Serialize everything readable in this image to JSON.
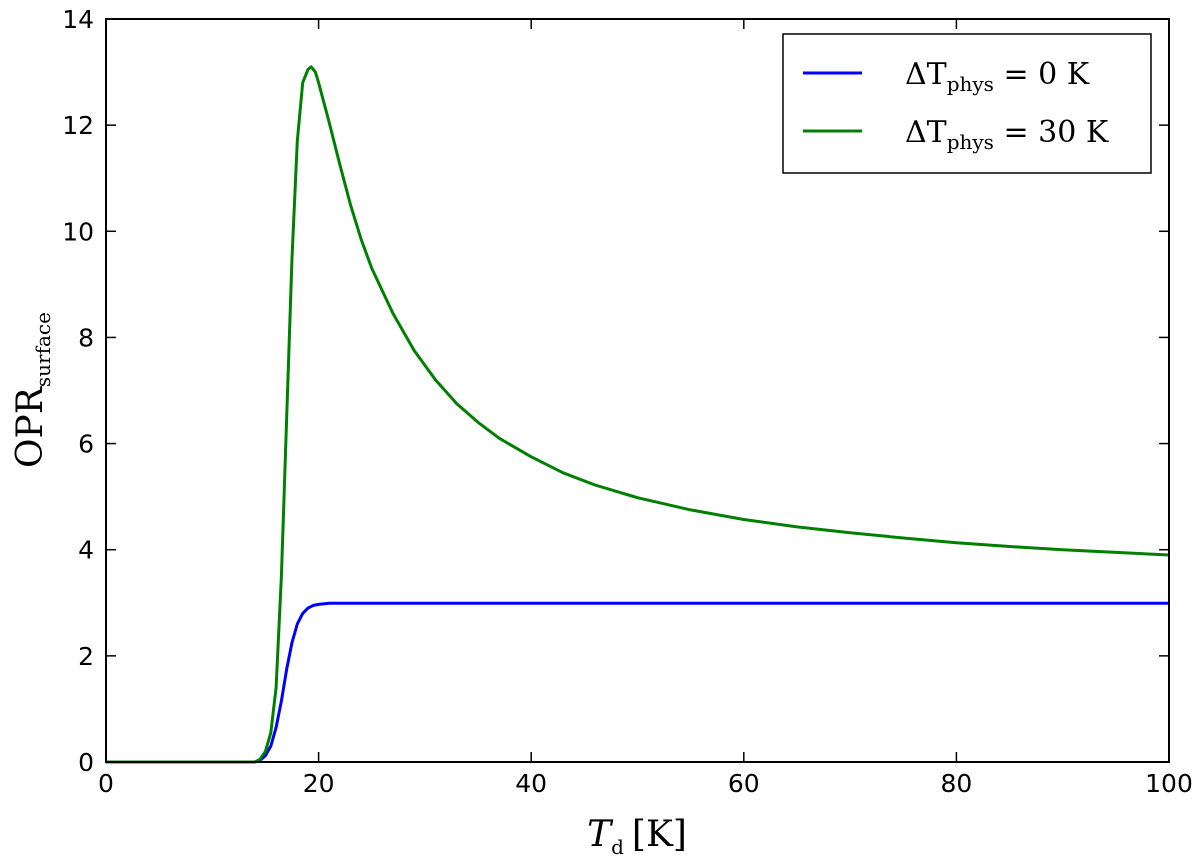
{
  "chart_data": {
    "type": "line",
    "xlabel": {
      "main": "T",
      "sub": "d",
      "unit": "[K]"
    },
    "ylabel": {
      "main": "OPR",
      "sub": "surface"
    },
    "xlim": [
      0,
      100
    ],
    "ylim": [
      0,
      14
    ],
    "xticks": [
      "0",
      "20",
      "40",
      "60",
      "80",
      "100"
    ],
    "yticks": [
      "0",
      "2",
      "4",
      "6",
      "8",
      "10",
      "12",
      "14"
    ],
    "grid": false,
    "legend_position": "top-right",
    "series": [
      {
        "name": "ΔT_phys = 0 K",
        "label": {
          "main": "ΔT",
          "sub": "phys",
          "rest": " = 0 K"
        },
        "color": "#0000ff",
        "x": [
          0,
          14,
          14.5,
          15,
          15.5,
          16,
          16.5,
          17,
          17.5,
          18,
          18.5,
          19,
          19.5,
          20,
          21,
          25,
          30,
          40,
          50,
          60,
          70,
          80,
          90,
          100
        ],
        "y": [
          0,
          0,
          0.03,
          0.12,
          0.3,
          0.65,
          1.15,
          1.75,
          2.25,
          2.6,
          2.8,
          2.9,
          2.95,
          2.97,
          2.99,
          2.99,
          2.99,
          2.99,
          2.99,
          2.99,
          2.99,
          2.99,
          2.99,
          2.99
        ]
      },
      {
        "name": "ΔT_phys = 30 K",
        "label": {
          "main": "ΔT",
          "sub": "phys",
          "rest": " = 30 K"
        },
        "color": "#008000",
        "x": [
          0,
          14,
          14.5,
          15,
          15.5,
          16,
          16.5,
          17,
          17.5,
          18,
          18.5,
          19,
          19.3,
          19.7,
          20,
          21,
          22,
          23,
          24,
          25,
          27,
          29,
          31,
          33,
          35,
          37,
          40,
          43,
          46,
          50,
          55,
          60,
          65,
          70,
          75,
          80,
          85,
          90,
          95,
          100
        ],
        "y": [
          0,
          0,
          0.05,
          0.2,
          0.55,
          1.4,
          3.5,
          6.5,
          9.5,
          11.7,
          12.8,
          13.05,
          13.1,
          13.0,
          12.8,
          12.05,
          11.25,
          10.5,
          9.85,
          9.3,
          8.45,
          7.75,
          7.2,
          6.75,
          6.4,
          6.1,
          5.75,
          5.45,
          5.22,
          4.98,
          4.75,
          4.57,
          4.43,
          4.32,
          4.22,
          4.13,
          4.06,
          4.0,
          3.95,
          3.9
        ]
      }
    ]
  }
}
